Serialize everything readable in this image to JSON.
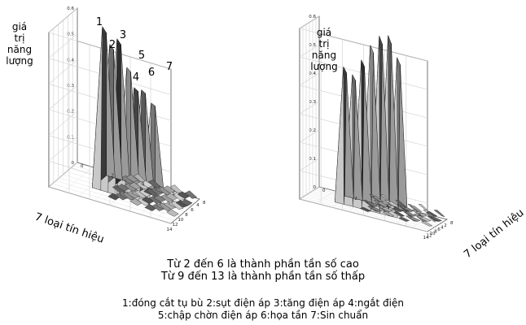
{
  "chart_data": [
    {
      "type": "surface",
      "zlabel_lines": [
        "giá",
        "trị",
        "năng",
        "lượng"
      ],
      "xlabel": "7 loại tín hiệu",
      "z_ticks": [
        "0",
        "0.1",
        "0.2",
        "0.3",
        "0.4",
        "0.5",
        "0.6"
      ],
      "x_ticks": [
        "0",
        "2",
        "4",
        "6",
        "8"
      ],
      "y_ticks": [
        "4",
        "6",
        "8",
        "10",
        "12",
        "14"
      ],
      "zlim": [
        0,
        0.6
      ],
      "peak_labels": [
        "1",
        "2",
        "3",
        "5",
        "4",
        "6",
        "7"
      ],
      "approx_peaks": [
        0.62,
        0.56,
        0.59,
        0.49,
        0.42,
        0.42,
        0.38
      ]
    },
    {
      "type": "surface",
      "zlabel_lines": [
        "giá",
        "trị",
        "năng",
        "lượng"
      ],
      "xlabel": "7 loại tín hiệu",
      "z_ticks": [
        "0",
        "0.1",
        "0.2",
        "0.3",
        "0.4",
        "0.5",
        "0.6"
      ],
      "x_ticks": [
        "0",
        "2",
        "4",
        "6",
        "8"
      ],
      "y_ticks": [
        "2",
        "4",
        "6",
        "8",
        "10",
        "12",
        "14"
      ],
      "zlim": [
        0,
        0.6
      ],
      "approx_peaks": [
        0.48,
        0.46,
        0.52,
        0.58,
        0.62,
        0.63,
        0.56
      ]
    }
  ],
  "captions": {
    "line1": "Từ 2 đến 6 là thành phần tần số cao",
    "line2": "Từ 9 đến 13 là thành phần tần số thấp",
    "legend_line1": "1:đóng cắt tụ bù   2:sụt điện áp   3:tăng điện áp   4:ngắt điện",
    "legend_line2": "5:chập chờn điện áp   6:họa tần   7:Sin chuẩn"
  }
}
